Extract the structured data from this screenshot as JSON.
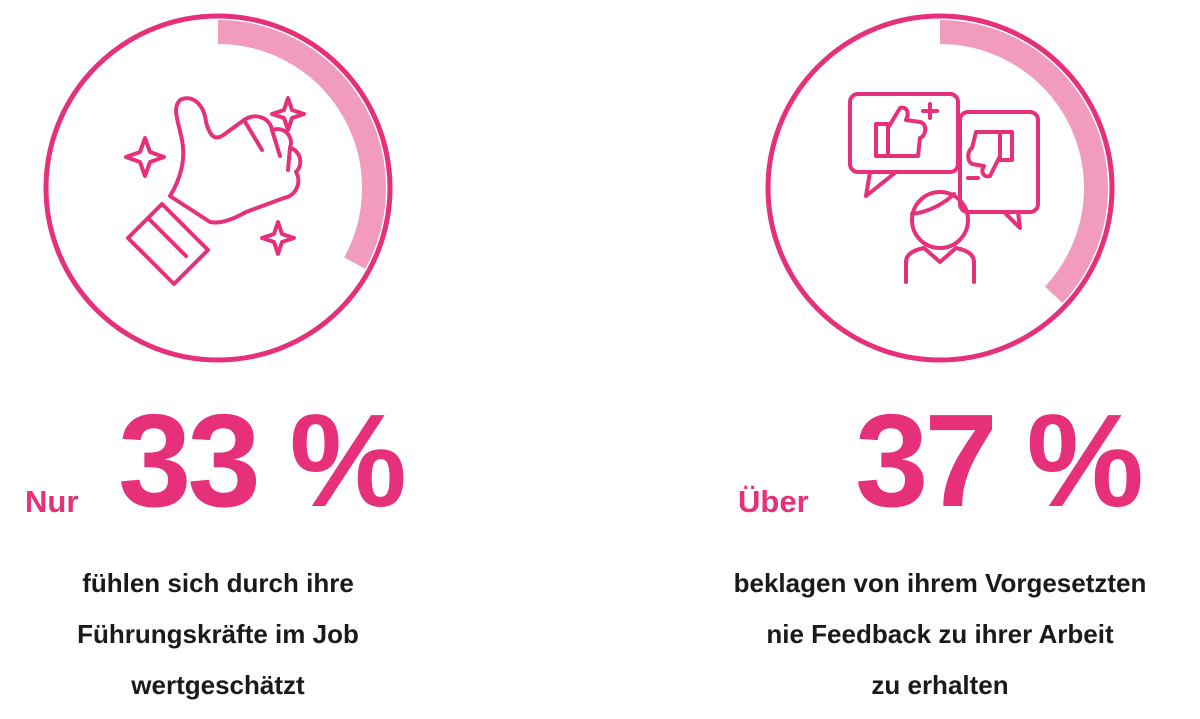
{
  "chart_data": {
    "type": "ring",
    "color": "#e6307a",
    "arc_color": "#f19bbf",
    "items": [
      {
        "prefix": "Nur",
        "value": 33,
        "value_label": "33 %",
        "text": [
          "fühlen sich durch ihre",
          "Führungskräfte im Job",
          "wertgeschätzt"
        ]
      },
      {
        "prefix": "Über",
        "value": 37,
        "value_label": "37 %",
        "text": [
          "beklagen von ihrem Vorgesetzten",
          "nie Feedback zu ihrer Arbeit",
          "zu erhalten"
        ]
      }
    ]
  }
}
